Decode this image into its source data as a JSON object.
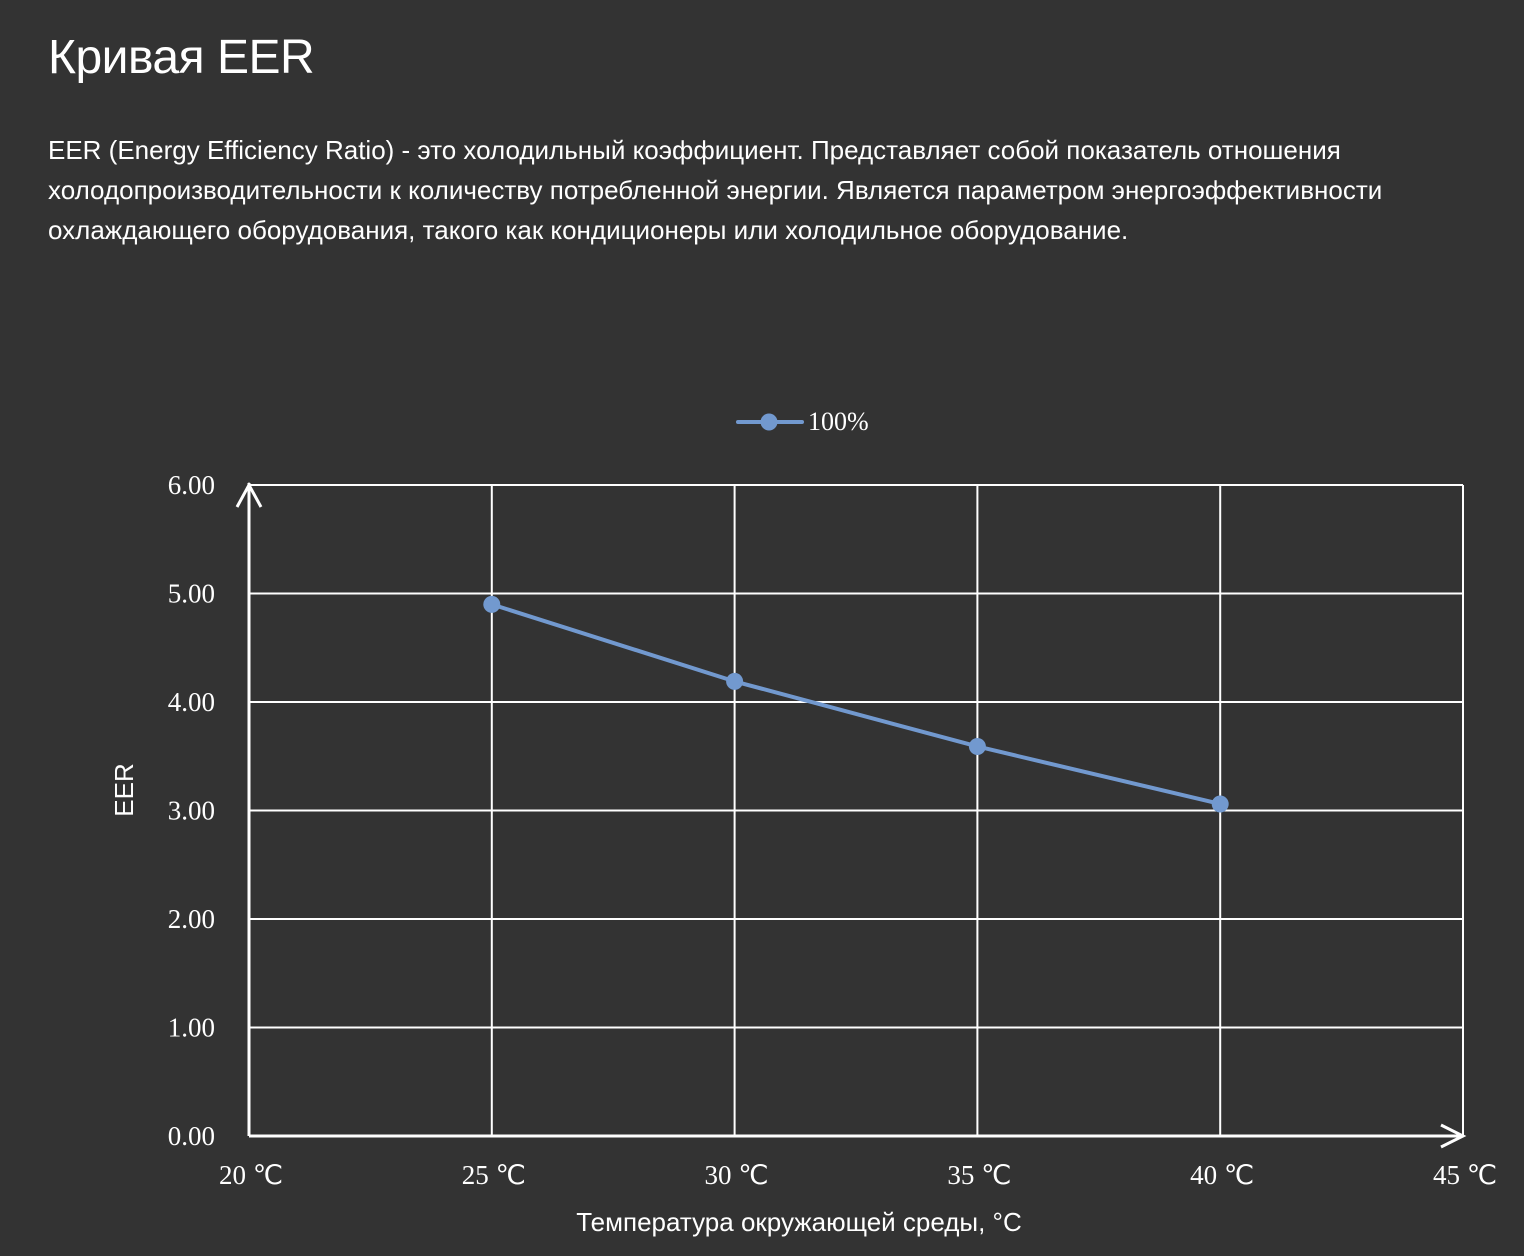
{
  "page": {
    "title": "Кривая EER",
    "description": "EER (Energy Efficiency Ratio) - это холодильный коэффициент. Представляет собой показатель отношения холодопроизводительности к количеству потребленной энергии. Является параметром энергоэффективности охлаждающего оборудования, такого как кондиционеры или холодильное оборудование."
  },
  "colors": {
    "background": "#333333",
    "text": "#ffffff",
    "grid": "#ffffff",
    "series": "#7299cf"
  },
  "chart_data": {
    "type": "line",
    "title": "",
    "xlabel": "Температура окружающей среды, °C",
    "ylabel": "EER",
    "x": [
      20,
      25,
      30,
      35,
      40,
      45
    ],
    "xticklabels": [
      "20 ℃",
      "25 ℃",
      "30 ℃",
      "35 ℃",
      "40 ℃",
      "45 ℃"
    ],
    "ylim": [
      0,
      6
    ],
    "yticks": [
      0,
      1,
      2,
      3,
      4,
      5,
      6
    ],
    "yticklabels": [
      "0.00",
      "1.00",
      "2.00",
      "3.00",
      "4.00",
      "5.00",
      "6.00"
    ],
    "xlim": [
      20,
      45
    ],
    "grid": true,
    "legend_position": "top-center",
    "series": [
      {
        "name": "100%",
        "x": [
          25,
          30,
          35,
          40
        ],
        "y": [
          4.9,
          4.19,
          3.59,
          3.06
        ],
        "marker": "circle"
      }
    ]
  }
}
